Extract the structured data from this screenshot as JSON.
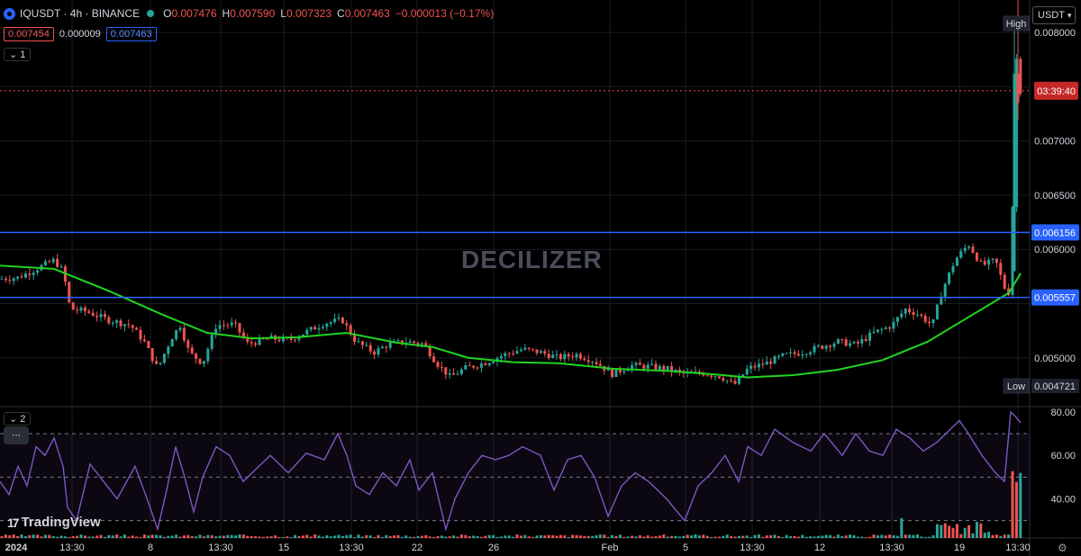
{
  "header": {
    "symbol": "IQUSDT · 4h · BINANCE",
    "open_label": "O",
    "open": "0.007476",
    "high_label": "H",
    "high": "0.007590",
    "low_label": "L",
    "low": "0.007323",
    "close_label": "C",
    "close": "0.007463",
    "change": "−0.000013 (−0.17%)"
  },
  "pills": {
    "bid": "0.007454",
    "spread": "0.000009",
    "ask": "0.007463"
  },
  "pane1_legend": "1",
  "pane2_legend": "2",
  "currency": "USDT",
  "more_button": "∙∙∙",
  "brand": "TradingView",
  "watermark": "DECILIZER",
  "colors": {
    "up": "#26a69a",
    "down": "#ef5350",
    "ma": "#21d421",
    "rsi": "#7e57c2",
    "hline": "#2962ff"
  },
  "chart_data": {
    "type": "candlestick",
    "symbol": "IQUSDT",
    "interval": "4h",
    "exchange": "BINANCE",
    "price_axis": {
      "ticks": [
        0.008,
        0.0075,
        0.007,
        0.0065,
        0.006,
        0.0055,
        0.005
      ],
      "tick_labels": [
        "0.008000",
        "",
        "0.007000",
        "0.006500",
        "0.006000",
        "",
        "0.005000"
      ],
      "range": [
        0.00455,
        0.0083
      ]
    },
    "time_axis": {
      "labels": [
        "2024",
        "13:30",
        "8",
        "13:30",
        "15",
        "13:30",
        "22",
        "26",
        "Feb",
        "5",
        "13:30",
        "12",
        "13:30",
        "19",
        "13:30"
      ]
    },
    "last_price_countdown": "03:39:40",
    "last_price": 0.007463,
    "horizontal_lines": [
      {
        "value": 0.006156,
        "label": "0.006156"
      },
      {
        "value": 0.005557,
        "label": "0.005557"
      }
    ],
    "high_label": "High",
    "low_label": "Low",
    "low_value": "0.004721",
    "price_path": [
      [
        0,
        0.00573
      ],
      [
        20,
        0.00574
      ],
      [
        40,
        0.00582
      ],
      [
        60,
        0.0059
      ],
      [
        70,
        0.0058
      ],
      [
        78,
        0.00545
      ],
      [
        95,
        0.00543
      ],
      [
        120,
        0.00535
      ],
      [
        145,
        0.0053
      ],
      [
        160,
        0.00515
      ],
      [
        175,
        0.0049
      ],
      [
        190,
        0.00518
      ],
      [
        200,
        0.0053
      ],
      [
        210,
        0.00505
      ],
      [
        225,
        0.00495
      ],
      [
        240,
        0.0053
      ],
      [
        260,
        0.00531
      ],
      [
        275,
        0.00513
      ],
      [
        300,
        0.00518
      ],
      [
        320,
        0.00516
      ],
      [
        340,
        0.00524
      ],
      [
        360,
        0.00532
      ],
      [
        380,
        0.00535
      ],
      [
        395,
        0.00515
      ],
      [
        415,
        0.00505
      ],
      [
        430,
        0.00512
      ],
      [
        450,
        0.00515
      ],
      [
        470,
        0.00513
      ],
      [
        485,
        0.00495
      ],
      [
        500,
        0.00482
      ],
      [
        515,
        0.0049
      ],
      [
        540,
        0.00496
      ],
      [
        560,
        0.00503
      ],
      [
        580,
        0.00508
      ],
      [
        600,
        0.00505
      ],
      [
        620,
        0.005
      ],
      [
        640,
        0.00503
      ],
      [
        660,
        0.00497
      ],
      [
        680,
        0.00485
      ],
      [
        700,
        0.00493
      ],
      [
        720,
        0.00492
      ],
      [
        740,
        0.0049
      ],
      [
        760,
        0.00485
      ],
      [
        780,
        0.00486
      ],
      [
        800,
        0.00483
      ],
      [
        815,
        0.00475
      ],
      [
        830,
        0.0049
      ],
      [
        850,
        0.00495
      ],
      [
        870,
        0.00502
      ],
      [
        890,
        0.00505
      ],
      [
        910,
        0.0051
      ],
      [
        930,
        0.00515
      ],
      [
        950,
        0.00512
      ],
      [
        970,
        0.00523
      ],
      [
        990,
        0.0053
      ],
      [
        1005,
        0.00545
      ],
      [
        1020,
        0.0054
      ],
      [
        1035,
        0.0053
      ],
      [
        1045,
        0.0056
      ],
      [
        1060,
        0.0059
      ],
      [
        1075,
        0.00605
      ],
      [
        1090,
        0.00585
      ],
      [
        1105,
        0.0059
      ],
      [
        1115,
        0.00565
      ],
      [
        1120,
        0.0056
      ],
      [
        1124,
        0.0064
      ],
      [
        1127,
        0.0079
      ],
      [
        1131,
        0.00749
      ],
      [
        1133,
        0.007463
      ]
    ],
    "ma_path": [
      [
        0,
        0.00585
      ],
      [
        60,
        0.00582
      ],
      [
        120,
        0.00562
      ],
      [
        180,
        0.0054
      ],
      [
        230,
        0.00523
      ],
      [
        280,
        0.00518
      ],
      [
        330,
        0.00519
      ],
      [
        385,
        0.00523
      ],
      [
        440,
        0.00514
      ],
      [
        480,
        0.0051
      ],
      [
        520,
        0.005
      ],
      [
        570,
        0.00496
      ],
      [
        620,
        0.00495
      ],
      [
        680,
        0.0049
      ],
      [
        740,
        0.00488
      ],
      [
        790,
        0.00485
      ],
      [
        830,
        0.00482
      ],
      [
        880,
        0.00484
      ],
      [
        930,
        0.00489
      ],
      [
        980,
        0.00498
      ],
      [
        1030,
        0.00515
      ],
      [
        1070,
        0.00535
      ],
      [
        1100,
        0.0055
      ],
      [
        1120,
        0.0056
      ],
      [
        1133,
        0.00578
      ]
    ],
    "rsi": {
      "ticks": [
        80,
        60,
        40
      ],
      "tick_labels": [
        "80.00",
        "60.00",
        "40.00"
      ],
      "band": [
        30,
        70
      ],
      "range": [
        22,
        82
      ],
      "path": [
        [
          0,
          48
        ],
        [
          10,
          42
        ],
        [
          20,
          55
        ],
        [
          30,
          46
        ],
        [
          40,
          64
        ],
        [
          50,
          60
        ],
        [
          60,
          68
        ],
        [
          70,
          55
        ],
        [
          75,
          36
        ],
        [
          85,
          30
        ],
        [
          100,
          56
        ],
        [
          115,
          48
        ],
        [
          130,
          40
        ],
        [
          150,
          55
        ],
        [
          165,
          38
        ],
        [
          175,
          26
        ],
        [
          185,
          44
        ],
        [
          195,
          64
        ],
        [
          205,
          50
        ],
        [
          215,
          34
        ],
        [
          225,
          50
        ],
        [
          240,
          64
        ],
        [
          255,
          60
        ],
        [
          270,
          48
        ],
        [
          285,
          54
        ],
        [
          300,
          60
        ],
        [
          320,
          52
        ],
        [
          340,
          61
        ],
        [
          360,
          58
        ],
        [
          375,
          70
        ],
        [
          385,
          60
        ],
        [
          395,
          46
        ],
        [
          410,
          42
        ],
        [
          425,
          52
        ],
        [
          440,
          46
        ],
        [
          455,
          58
        ],
        [
          465,
          44
        ],
        [
          480,
          52
        ],
        [
          495,
          26
        ],
        [
          505,
          40
        ],
        [
          520,
          52
        ],
        [
          535,
          60
        ],
        [
          550,
          58
        ],
        [
          565,
          60
        ],
        [
          580,
          64
        ],
        [
          600,
          60
        ],
        [
          615,
          44
        ],
        [
          630,
          58
        ],
        [
          645,
          60
        ],
        [
          660,
          50
        ],
        [
          675,
          32
        ],
        [
          690,
          46
        ],
        [
          705,
          52
        ],
        [
          720,
          48
        ],
        [
          740,
          40
        ],
        [
          760,
          30
        ],
        [
          775,
          46
        ],
        [
          790,
          52
        ],
        [
          805,
          60
        ],
        [
          820,
          48
        ],
        [
          830,
          64
        ],
        [
          845,
          60
        ],
        [
          860,
          72
        ],
        [
          880,
          66
        ],
        [
          900,
          62
        ],
        [
          915,
          70
        ],
        [
          935,
          60
        ],
        [
          950,
          70
        ],
        [
          965,
          62
        ],
        [
          980,
          60
        ],
        [
          995,
          72
        ],
        [
          1010,
          68
        ],
        [
          1025,
          62
        ],
        [
          1040,
          66
        ],
        [
          1055,
          72
        ],
        [
          1065,
          76
        ],
        [
          1075,
          70
        ],
        [
          1090,
          60
        ],
        [
          1105,
          52
        ],
        [
          1115,
          48
        ],
        [
          1122,
          80
        ],
        [
          1127,
          78
        ],
        [
          1133,
          75
        ]
      ]
    }
  }
}
